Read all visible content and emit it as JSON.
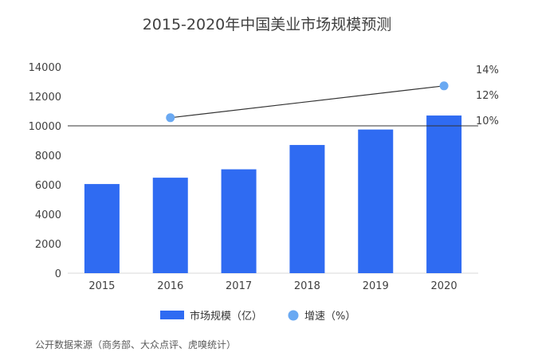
{
  "chart_data": {
    "type": "bar",
    "title": "2015-2020年中国美业市场规模预测",
    "categories": [
      "2015",
      "2016",
      "2017",
      "2018",
      "2019",
      "2020"
    ],
    "series": [
      {
        "name": "市场规模（亿）",
        "kind": "bar",
        "axis": "left",
        "color": "#2f6bf2",
        "values": [
          6050,
          6480,
          7050,
          8700,
          9750,
          10700
        ]
      },
      {
        "name": "增速（%）",
        "kind": "line",
        "axis": "right",
        "color": "#6aa9f2",
        "values": [
          null,
          10.2,
          null,
          null,
          null,
          12.7
        ]
      }
    ],
    "left_axis": {
      "ylim": [
        0,
        14000
      ],
      "ticks": [
        "0",
        "2000",
        "4000",
        "6000",
        "8000",
        "10000",
        "12000",
        "14000"
      ]
    },
    "right_axis": {
      "ylim": [
        10,
        14
      ],
      "ticks": [
        "10%",
        "12%",
        "14%"
      ]
    },
    "reference_line": 10000,
    "legend_position": "bottom",
    "grid": false
  },
  "source_note": "公开数据来源（商务部、大众点评、虎嗅统计）"
}
